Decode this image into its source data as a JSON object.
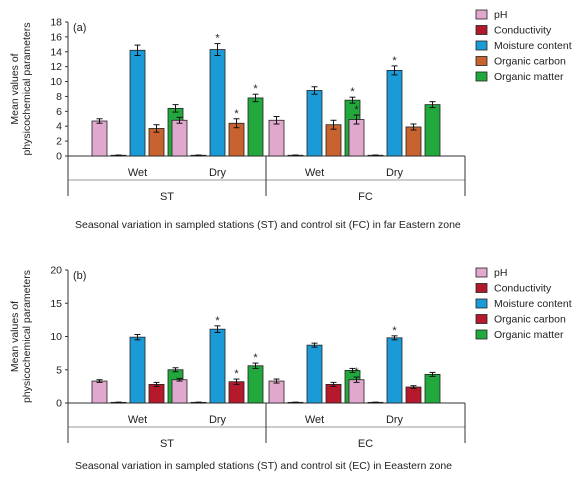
{
  "chart_data": [
    {
      "type": "bar",
      "panel_label": "(a)",
      "ylabel_lines": [
        "Mean values of",
        "physicochemical parameters"
      ],
      "ylim": [
        0,
        18
      ],
      "yticks": [
        0,
        2,
        4,
        6,
        8,
        10,
        12,
        14,
        16,
        18
      ],
      "xlabel": "Seasonal variation in sampled stations (ST) and control sit (FC) in far Eastern zone",
      "groups": [
        "ST",
        "FC"
      ],
      "seasons": [
        "Wet",
        "Dry"
      ],
      "legend_position": "right",
      "series": [
        {
          "name": "pH",
          "color": "#e0a8cc",
          "values": [
            4.7,
            4.8,
            4.8,
            4.9
          ],
          "errors": [
            0.3,
            0.4,
            0.5,
            0.6
          ],
          "star": [
            false,
            false,
            false,
            true
          ]
        },
        {
          "name": "Conductivity",
          "color": "#b0182c",
          "values": [
            0.1,
            0.1,
            0.1,
            0.1
          ],
          "errors": [
            0.03,
            0.03,
            0.03,
            0.03
          ],
          "star": [
            false,
            false,
            false,
            false
          ]
        },
        {
          "name": "Moisture content",
          "color": "#1a9ad6",
          "values": [
            14.2,
            14.3,
            8.8,
            11.5
          ],
          "errors": [
            0.7,
            0.8,
            0.5,
            0.6
          ],
          "star": [
            false,
            true,
            false,
            true
          ]
        },
        {
          "name": "Organic carbon",
          "color": "#c8622e",
          "values": [
            3.7,
            4.4,
            4.2,
            3.9
          ],
          "errors": [
            0.5,
            0.6,
            0.6,
            0.4
          ],
          "star": [
            false,
            true,
            false,
            false
          ]
        },
        {
          "name": "Organic matter",
          "color": "#22a93d",
          "values": [
            6.4,
            7.8,
            7.5,
            6.9
          ],
          "errors": [
            0.5,
            0.5,
            0.4,
            0.4
          ],
          "star": [
            false,
            true,
            true,
            false
          ]
        }
      ]
    },
    {
      "type": "bar",
      "panel_label": "(b)",
      "ylabel_lines": [
        "Mean values of",
        "physicochemical parameters"
      ],
      "ylim": [
        0,
        20
      ],
      "yticks": [
        0,
        5,
        10,
        15,
        20
      ],
      "xlabel": "Seasonal variation in sampled stations (ST) and control sit (EC) in Eeastern zone",
      "groups": [
        "ST",
        "EC"
      ],
      "seasons": [
        "Wet",
        "Dry"
      ],
      "legend_position": "right",
      "series": [
        {
          "name": "pH",
          "color": "#e0a8cc",
          "values": [
            3.3,
            3.5,
            3.3,
            3.5
          ],
          "errors": [
            0.2,
            0.2,
            0.3,
            0.4
          ],
          "star": [
            false,
            false,
            false,
            true
          ]
        },
        {
          "name": "Conductivity",
          "color": "#b0182c",
          "values": [
            0.1,
            0.1,
            0.1,
            0.1
          ],
          "errors": [
            0.03,
            0.03,
            0.03,
            0.03
          ],
          "star": [
            false,
            false,
            false,
            false
          ]
        },
        {
          "name": "Moisture content",
          "color": "#1a9ad6",
          "values": [
            9.9,
            11.1,
            8.7,
            9.8
          ],
          "errors": [
            0.4,
            0.5,
            0.3,
            0.3
          ],
          "star": [
            false,
            true,
            false,
            true
          ]
        },
        {
          "name": "Organic carbon",
          "color": "#b7192c",
          "values": [
            2.8,
            3.2,
            2.8,
            2.4
          ],
          "errors": [
            0.3,
            0.4,
            0.3,
            0.2
          ],
          "star": [
            false,
            true,
            false,
            false
          ]
        },
        {
          "name": "Organic matter",
          "color": "#22a93d",
          "values": [
            5.0,
            5.6,
            4.9,
            4.3
          ],
          "errors": [
            0.3,
            0.4,
            0.3,
            0.3
          ],
          "star": [
            false,
            true,
            false,
            false
          ]
        }
      ]
    }
  ]
}
